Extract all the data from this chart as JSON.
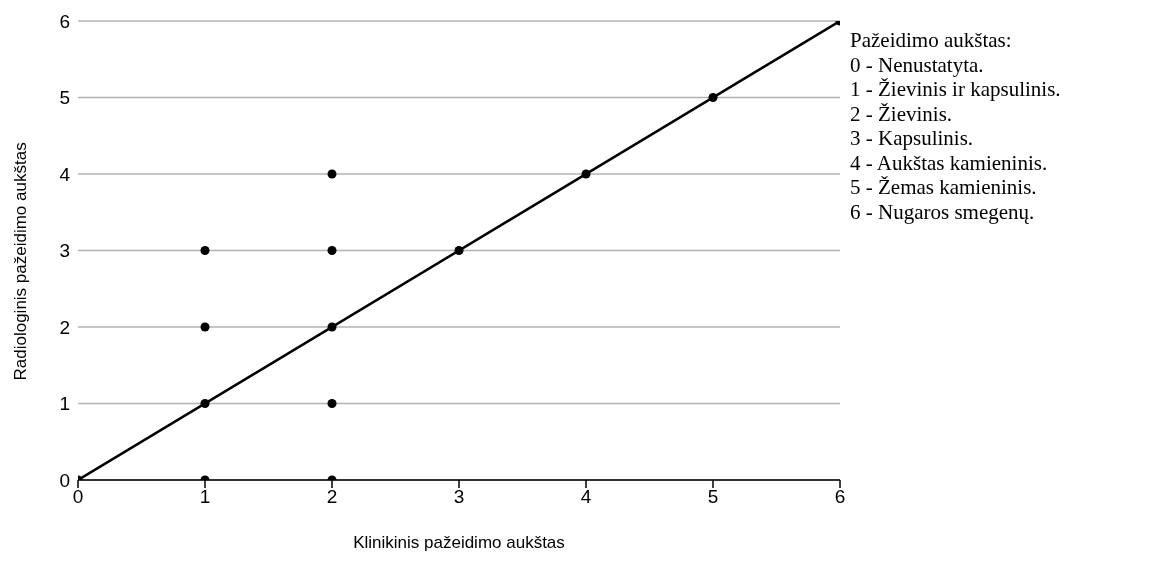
{
  "chart_data": {
    "type": "scatter",
    "xlabel": "Klinikinis  pažeidimo  aukštas",
    "ylabel": "Radiologinis  pažeidimo  aukštas",
    "series": [
      {
        "color": "#000000",
        "marker": "circle",
        "x": [
          0,
          1,
          1,
          1,
          1,
          2,
          2,
          2,
          2,
          2,
          3,
          4,
          5,
          6
        ],
        "values": [
          0,
          0,
          1,
          2,
          3,
          0,
          1,
          2,
          3,
          4,
          3,
          4,
          5,
          6
        ]
      },
      {
        "type": "line",
        "color": "#000000",
        "x": [
          0,
          6
        ],
        "values": [
          0,
          6
        ]
      }
    ],
    "xlim": [
      0,
      6
    ],
    "xticks": [
      0,
      1,
      2,
      3,
      4,
      5,
      6
    ],
    "ylim": [
      0,
      6
    ],
    "yticks": [
      0,
      1,
      2,
      3,
      4,
      5,
      6
    ],
    "grid": "y",
    "line_style": "solid",
    "annotations": [
      "Pažeidimo aukštas:",
      "0 - Nenustatyta.",
      "1 - Žievinis ir kapsulinis.",
      "2 - Žievinis.",
      "3 - Kapsulinis.",
      "4 - Aukštas kamieninis.",
      "5 - Žemas kamieninis.",
      "6 - Nugaros smegenų."
    ]
  }
}
